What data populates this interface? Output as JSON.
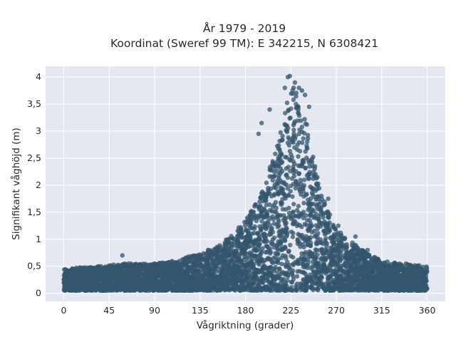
{
  "chart_data": {
    "type": "scatter",
    "title": "År 1979 - 2019",
    "subtitle": "Koordinat (Sweref 99 TM): E 342215, N 6308421",
    "xlabel": "Vågriktning (grader)",
    "ylabel": "Signifikant våghöjd (m)",
    "xlim": [
      -18,
      378
    ],
    "ylim": [
      -0.15,
      4.2
    ],
    "x_ticks": [
      0,
      45,
      90,
      135,
      180,
      225,
      270,
      315,
      360
    ],
    "x_tick_labels": [
      "0",
      "45",
      "90",
      "135",
      "180",
      "225",
      "270",
      "315",
      "360"
    ],
    "y_ticks": [
      0,
      0.5,
      1,
      1.5,
      2,
      2.5,
      3,
      3.5,
      4
    ],
    "y_tick_labels": [
      "0",
      "0,5",
      "1",
      "1,5",
      "2",
      "2,5",
      "3",
      "3,5",
      "4"
    ],
    "grid": true,
    "legend": "none",
    "colors": {
      "marker": "#33566e",
      "plot_bg": "#e5e8f0",
      "grid": "#ffffff"
    },
    "envelope": {
      "description_points": [
        [
          0,
          0.45
        ],
        [
          30,
          0.5
        ],
        [
          60,
          0.55
        ],
        [
          90,
          0.55
        ],
        [
          110,
          0.6
        ],
        [
          135,
          0.75
        ],
        [
          150,
          0.85
        ],
        [
          165,
          1.05
        ],
        [
          180,
          1.35
        ],
        [
          195,
          1.8
        ],
        [
          205,
          2.4
        ],
        [
          215,
          3.0
        ],
        [
          225,
          3.9
        ],
        [
          232,
          3.7
        ],
        [
          240,
          3.2
        ],
        [
          250,
          2.3
        ],
        [
          260,
          1.6
        ],
        [
          270,
          1.2
        ],
        [
          285,
          0.95
        ],
        [
          300,
          0.75
        ],
        [
          315,
          0.6
        ],
        [
          335,
          0.55
        ],
        [
          360,
          0.5
        ]
      ],
      "min_wave_height": 0.05
    },
    "outliers": [
      [
        58,
        0.7
      ],
      [
        196,
        3.15
      ],
      [
        204,
        3.4
      ],
      [
        219,
        3.8
      ],
      [
        222,
        4.0
      ],
      [
        224,
        4.02
      ],
      [
        229,
        3.9
      ],
      [
        233,
        3.8
      ],
      [
        236,
        3.75
      ],
      [
        239,
        3.67
      ],
      [
        243,
        3.45
      ],
      [
        193,
        2.95
      ],
      [
        262,
        1.75
      ],
      [
        272,
        1.25
      ],
      [
        289,
        1.05
      ],
      [
        301,
        0.8
      ],
      [
        312,
        0.6
      ],
      [
        339,
        0.55
      ],
      [
        160,
        0.88
      ],
      [
        125,
        0.65
      ]
    ]
  }
}
